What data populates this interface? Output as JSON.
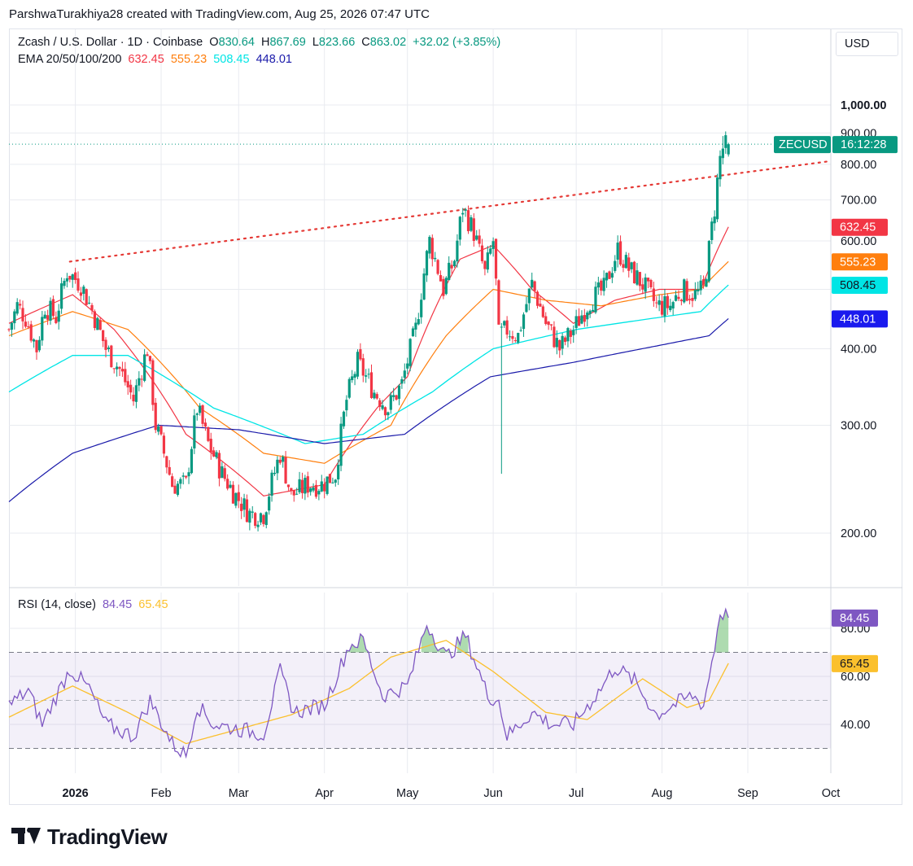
{
  "header": {
    "credit": "ParshwaTurakhiya28 created with TradingView.com, Aug 25, 2026 07:47 UTC"
  },
  "legend": {
    "symbol": "Zcash / U.S. Dollar · 1D · Coinbase",
    "o_label": "O",
    "o_value": "830.64",
    "h_label": "H",
    "h_value": "867.69",
    "l_label": "L",
    "l_value": "823.66",
    "c_label": "C",
    "c_value": "863.02",
    "change": "+32.02 (+3.85%)",
    "ema_label": "EMA 20/50/100/200",
    "ema20": "632.45",
    "ema50": "555.23",
    "ema100": "508.45",
    "ema200": "448.01",
    "rsi_label": "RSI (14, close)",
    "rsi_value": "84.45",
    "rsi_ma_value": "65.45"
  },
  "currency_button": "USD",
  "symbol_tag": "ZECUSD",
  "countdown": "16:12:28",
  "branding": "TradingView",
  "colors": {
    "up": "#089981",
    "down": "#f23645",
    "ema20": "#f23645",
    "ema50": "#ff7f0e",
    "ema100": "#00e5e5",
    "ema200": "#1a1aaa",
    "rsi": "#7e57c2",
    "rsi_ma": "#fbc02d",
    "trendline": "#e53935"
  },
  "chart_data": [
    {
      "type": "candlestick",
      "title": "Zcash / U.S. Dollar · 1D · Coinbase",
      "price_axis": {
        "scale": "log",
        "ticks": [
          "200.00",
          "300.00",
          "400.00",
          "500.00",
          "600.00",
          "700.00",
          "800.00",
          "900.00",
          "1,000.00"
        ],
        "tick_values": [
          200,
          300,
          400,
          500,
          600,
          700,
          800,
          900,
          1000
        ]
      },
      "time_axis": {
        "labels": [
          "2026",
          "Feb",
          "Mar",
          "Apr",
          "May",
          "Jun",
          "Jul",
          "Aug",
          "Sep",
          "Oct"
        ],
        "label_dates": [
          "2026-01-01",
          "2026-02-01",
          "2026-03-01",
          "2026-04-01",
          "2026-05-01",
          "2026-06-01",
          "2026-07-01",
          "2026-08-01",
          "2026-09-01",
          "2026-10-01"
        ],
        "range": [
          "2025-12-08",
          "2026-10-01"
        ]
      },
      "last_close": 863.02,
      "close_anchors": [
        [
          "2025-12-08",
          430
        ],
        [
          "2025-12-11",
          470
        ],
        [
          "2025-12-14",
          450
        ],
        [
          "2025-12-18",
          400
        ],
        [
          "2025-12-21",
          470
        ],
        [
          "2025-12-25",
          450
        ],
        [
          "2025-12-29",
          535
        ],
        [
          "2026-01-03",
          510
        ],
        [
          "2026-01-08",
          450
        ],
        [
          "2026-01-12",
          400
        ],
        [
          "2026-01-17",
          370
        ],
        [
          "2026-01-22",
          330
        ],
        [
          "2026-01-27",
          400
        ],
        [
          "2026-01-30",
          300
        ],
        [
          "2026-02-05",
          240
        ],
        [
          "2026-02-10",
          240
        ],
        [
          "2026-02-14",
          320
        ],
        [
          "2026-02-18",
          280
        ],
        [
          "2026-02-23",
          250
        ],
        [
          "2026-02-28",
          230
        ],
        [
          "2026-03-05",
          215
        ],
        [
          "2026-03-10",
          215
        ],
        [
          "2026-03-16",
          270
        ],
        [
          "2026-03-20",
          230
        ],
        [
          "2026-03-26",
          240
        ],
        [
          "2026-03-31",
          240
        ],
        [
          "2026-04-05",
          250
        ],
        [
          "2026-04-09",
          330
        ],
        [
          "2026-04-13",
          380
        ],
        [
          "2026-04-19",
          340
        ],
        [
          "2026-04-24",
          320
        ],
        [
          "2026-04-29",
          350
        ],
        [
          "2026-05-04",
          430
        ],
        [
          "2026-05-09",
          600
        ],
        [
          "2026-05-14",
          500
        ],
        [
          "2026-05-18",
          560
        ],
        [
          "2026-05-21",
          680
        ],
        [
          "2026-05-25",
          620
        ],
        [
          "2026-05-29",
          530
        ],
        [
          "2026-06-01",
          600
        ],
        [
          "2026-06-03",
          420
        ],
        [
          "2026-06-06",
          430
        ],
        [
          "2026-06-10",
          420
        ],
        [
          "2026-06-15",
          510
        ],
        [
          "2026-06-20",
          440
        ],
        [
          "2026-06-25",
          400
        ],
        [
          "2026-06-30",
          430
        ],
        [
          "2026-07-06",
          480
        ],
        [
          "2026-07-11",
          500
        ],
        [
          "2026-07-16",
          580
        ],
        [
          "2026-07-20",
          540
        ],
        [
          "2026-07-25",
          510
        ],
        [
          "2026-07-30",
          470
        ],
        [
          "2026-08-04",
          470
        ],
        [
          "2026-08-08",
          500
        ],
        [
          "2026-08-13",
          490
        ],
        [
          "2026-08-16",
          500
        ],
        [
          "2026-08-18",
          580
        ],
        [
          "2026-08-20",
          680
        ],
        [
          "2026-08-22",
          820
        ],
        [
          "2026-08-23",
          850
        ],
        [
          "2026-08-25",
          863.02
        ]
      ],
      "wicks": [
        [
          "2026-06-04",
          250
        ],
        [
          "2026-08-23",
          890
        ]
      ],
      "series": [
        {
          "name": "EMA 20",
          "last": 632.45,
          "anchors": [
            [
              "2025-12-08",
              440
            ],
            [
              "2025-12-31",
              490
            ],
            [
              "2026-01-15",
              430
            ],
            [
              "2026-02-10",
              290
            ],
            [
              "2026-03-10",
              230
            ],
            [
              "2026-04-01",
              240
            ],
            [
              "2026-04-20",
              320
            ],
            [
              "2026-05-01",
              360
            ],
            [
              "2026-05-20",
              560
            ],
            [
              "2026-06-01",
              590
            ],
            [
              "2026-06-15",
              500
            ],
            [
              "2026-06-30",
              440
            ],
            [
              "2026-07-15",
              480
            ],
            [
              "2026-07-31",
              500
            ],
            [
              "2026-08-15",
              500
            ],
            [
              "2026-08-25",
              632.45
            ]
          ]
        },
        {
          "name": "EMA 50",
          "last": 555.23,
          "anchors": [
            [
              "2025-12-08",
              420
            ],
            [
              "2025-12-31",
              460
            ],
            [
              "2026-01-20",
              430
            ],
            [
              "2026-02-15",
              320
            ],
            [
              "2026-03-10",
              270
            ],
            [
              "2026-04-01",
              260
            ],
            [
              "2026-04-25",
              300
            ],
            [
              "2026-05-15",
              420
            ],
            [
              "2026-06-01",
              500
            ],
            [
              "2026-06-20",
              480
            ],
            [
              "2026-07-10",
              470
            ],
            [
              "2026-07-31",
              490
            ],
            [
              "2026-08-15",
              500
            ],
            [
              "2026-08-25",
              555.23
            ]
          ]
        },
        {
          "name": "EMA 100",
          "last": 508.45,
          "anchors": [
            [
              "2025-12-08",
              340
            ],
            [
              "2025-12-31",
              390
            ],
            [
              "2026-01-20",
              390
            ],
            [
              "2026-02-20",
              320
            ],
            [
              "2026-03-25",
              280
            ],
            [
              "2026-04-15",
              290
            ],
            [
              "2026-05-10",
              340
            ],
            [
              "2026-06-01",
              400
            ],
            [
              "2026-07-01",
              430
            ],
            [
              "2026-07-31",
              450
            ],
            [
              "2026-08-15",
              460
            ],
            [
              "2026-08-25",
              508.45
            ]
          ]
        },
        {
          "name": "EMA 200",
          "last": 448.01,
          "anchors": [
            [
              "2025-12-08",
              225
            ],
            [
              "2025-12-31",
              270
            ],
            [
              "2026-01-31",
              300
            ],
            [
              "2026-03-01",
              295
            ],
            [
              "2026-04-01",
              280
            ],
            [
              "2026-04-30",
              290
            ],
            [
              "2026-05-31",
              360
            ],
            [
              "2026-06-30",
              380
            ],
            [
              "2026-07-31",
              405
            ],
            [
              "2026-08-18",
              420
            ],
            [
              "2026-08-25",
              448.01
            ]
          ]
        }
      ],
      "trendline": {
        "style": "dotted",
        "from": [
          "2025-12-30",
          555
        ],
        "to": [
          "2026-10-01",
          810
        ]
      }
    },
    {
      "type": "line",
      "title": "RSI (14, close)",
      "ylim": [
        20,
        95
      ],
      "y_ticks": [
        40,
        60,
        80
      ],
      "y_tick_labels": [
        "40.00",
        "60.00",
        "80.00"
      ],
      "bands": {
        "upper": 70,
        "middle": 50,
        "lower": 30
      },
      "series": [
        {
          "name": "RSI",
          "last": 84.45,
          "anchors": [
            [
              "2025-12-08",
              48
            ],
            [
              "2025-12-15",
              54
            ],
            [
              "2025-12-20",
              40
            ],
            [
              "2025-12-30",
              63
            ],
            [
              "2026-01-06",
              55
            ],
            [
              "2026-01-12",
              40
            ],
            [
              "2026-01-22",
              35
            ],
            [
              "2026-01-28",
              50
            ],
            [
              "2026-02-05",
              32
            ],
            [
              "2026-02-10",
              27
            ],
            [
              "2026-02-14",
              48
            ],
            [
              "2026-02-20",
              40
            ],
            [
              "2026-03-01",
              38
            ],
            [
              "2026-03-10",
              36
            ],
            [
              "2026-03-16",
              62
            ],
            [
              "2026-03-21",
              45
            ],
            [
              "2026-04-01",
              48
            ],
            [
              "2026-04-10",
              73
            ],
            [
              "2026-04-15",
              75
            ],
            [
              "2026-04-22",
              52
            ],
            [
              "2026-05-01",
              56
            ],
            [
              "2026-05-08",
              82
            ],
            [
              "2026-05-15",
              68
            ],
            [
              "2026-05-22",
              77
            ],
            [
              "2026-05-30",
              52
            ],
            [
              "2026-06-03",
              50
            ],
            [
              "2026-06-06",
              35
            ],
            [
              "2026-06-15",
              45
            ],
            [
              "2026-06-22",
              40
            ],
            [
              "2026-06-30",
              40
            ],
            [
              "2026-07-10",
              55
            ],
            [
              "2026-07-15",
              64
            ],
            [
              "2026-07-22",
              58
            ],
            [
              "2026-07-30",
              44
            ],
            [
              "2026-08-05",
              48
            ],
            [
              "2026-08-12",
              52
            ],
            [
              "2026-08-16",
              48
            ],
            [
              "2026-08-20",
              72
            ],
            [
              "2026-08-22",
              87
            ],
            [
              "2026-08-25",
              84.45
            ]
          ]
        },
        {
          "name": "RSI MA",
          "last": 65.45,
          "anchors": [
            [
              "2025-12-08",
              43
            ],
            [
              "2025-12-31",
              56
            ],
            [
              "2026-01-20",
              45
            ],
            [
              "2026-02-10",
              32
            ],
            [
              "2026-03-01",
              38
            ],
            [
              "2026-03-20",
              44
            ],
            [
              "2026-04-10",
              55
            ],
            [
              "2026-04-25",
              68
            ],
            [
              "2026-05-15",
              75
            ],
            [
              "2026-06-01",
              62
            ],
            [
              "2026-06-20",
              45
            ],
            [
              "2026-07-05",
              42
            ],
            [
              "2026-07-25",
              59
            ],
            [
              "2026-08-10",
              47
            ],
            [
              "2026-08-18",
              50
            ],
            [
              "2026-08-25",
              65.45
            ]
          ]
        }
      ]
    }
  ]
}
